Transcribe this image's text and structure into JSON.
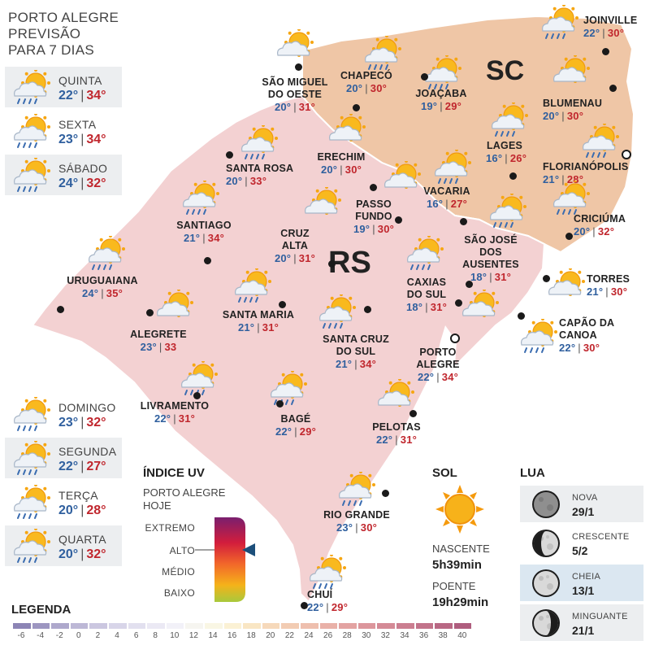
{
  "title": [
    "PORTO ALEGRE",
    "PREVISÃO",
    "PARA 7 DIAS"
  ],
  "forecast": [
    {
      "day": "QUINTA",
      "min": "22°",
      "max": "34°"
    },
    {
      "day": "SEXTA",
      "min": "23°",
      "max": "34°"
    },
    {
      "day": "SÁBADO",
      "min": "24°",
      "max": "32°"
    },
    {
      "day": "DOMINGO",
      "min": "23°",
      "max": "32°"
    },
    {
      "day": "SEGUNDA",
      "min": "22°",
      "max": "27°"
    },
    {
      "day": "TERÇA",
      "min": "20°",
      "max": "28°"
    },
    {
      "day": "QUARTA",
      "min": "20°",
      "max": "32°"
    }
  ],
  "states": {
    "sc": "SC",
    "rs": "RS"
  },
  "cities": [
    {
      "name": [
        "JOINVILLE"
      ],
      "min": "22°",
      "max": "30°"
    },
    {
      "name": [
        "SÃO MIGUEL",
        "DO OESTE"
      ],
      "min": "20°",
      "max": "31°"
    },
    {
      "name": [
        "CHAPECÓ"
      ],
      "min": "20°",
      "max": "30°"
    },
    {
      "name": [
        "JOAÇABA"
      ],
      "min": "19°",
      "max": "29°"
    },
    {
      "name": [
        "BLUMENAU"
      ],
      "min": "20°",
      "max": "30°"
    },
    {
      "name": [
        "LAGES"
      ],
      "min": "16°",
      "max": "26°"
    },
    {
      "name": [
        "FLORIANÓPOLIS"
      ],
      "min": "21°",
      "max": "28°"
    },
    {
      "name": [
        "ERECHIM"
      ],
      "min": "20°",
      "max": "30°"
    },
    {
      "name": [
        "SANTA ROSA"
      ],
      "min": "20°",
      "max": "33°"
    },
    {
      "name": [
        "VACARIA"
      ],
      "min": "16°",
      "max": "27°"
    },
    {
      "name": [
        "PASSO",
        "FUNDO"
      ],
      "min": "19°",
      "max": "30°"
    },
    {
      "name": [
        "CRICIÚMA"
      ],
      "min": "20°",
      "max": "32°"
    },
    {
      "name": [
        "SANTIAGO"
      ],
      "min": "21°",
      "max": "34°"
    },
    {
      "name": [
        "CRUZ ALTA"
      ],
      "min": "20°",
      "max": "31°"
    },
    {
      "name": [
        "SÃO JOSÉ",
        "DOS AUSENTES"
      ],
      "min": "18°",
      "max": "31°"
    },
    {
      "name": [
        "URUGUAIANA"
      ],
      "min": "24°",
      "max": "35°"
    },
    {
      "name": [
        "TORRES"
      ],
      "min": "21°",
      "max": "30°"
    },
    {
      "name": [
        "CAXIAS",
        "DO SUL"
      ],
      "min": "18°",
      "max": "31°"
    },
    {
      "name": [
        "SANTA MARIA"
      ],
      "min": "21°",
      "max": "31°"
    },
    {
      "name": [
        "ALEGRETE"
      ],
      "min": "23°",
      "max": "33"
    },
    {
      "name": [
        "CAPÃO DA",
        "CANOA"
      ],
      "min": "22°",
      "max": "30°"
    },
    {
      "name": [
        "SANTA CRUZ",
        "DO SUL"
      ],
      "min": "21°",
      "max": "34°"
    },
    {
      "name": [
        "PORTO",
        "ALEGRE"
      ],
      "min": "22°",
      "max": "34°"
    },
    {
      "name": [
        "LIVRAMENTO"
      ],
      "min": "22°",
      "max": "31°"
    },
    {
      "name": [
        "BAGÉ"
      ],
      "min": "22°",
      "max": "29°"
    },
    {
      "name": [
        "PELOTAS"
      ],
      "min": "22°",
      "max": "31°"
    },
    {
      "name": [
        "RIO GRANDE"
      ],
      "min": "23°",
      "max": "30°"
    },
    {
      "name": [
        "CHUÍ"
      ],
      "min": "22°",
      "max": "29°"
    }
  ],
  "uv": {
    "heading": "ÍNDICE UV",
    "sub": [
      "PORTO ALEGRE",
      "HOJE"
    ],
    "levels": [
      "EXTREMO",
      "ALTO",
      "MÉDIO",
      "BAIXO"
    ],
    "current": "ALTO",
    "gradient": [
      "#7a1f6e",
      "#d21d3c",
      "#f2672a",
      "#f5b21a",
      "#a8c93c"
    ]
  },
  "sun": {
    "heading": "SOL",
    "rise_label": "NASCENTE",
    "rise": "5h39min",
    "set_label": "POENTE",
    "set": "19h29min"
  },
  "moon": {
    "heading": "LUA",
    "phases": [
      {
        "name": "NOVA",
        "date": "29/1"
      },
      {
        "name": "CRESCENTE",
        "date": "5/2"
      },
      {
        "name": "CHEIA",
        "date": "13/1"
      },
      {
        "name": "MINGUANTE",
        "date": "21/1"
      }
    ]
  },
  "legend": {
    "heading": "LEGENDA",
    "ticks": [
      "-6",
      "-4",
      "-2",
      "0",
      "2",
      "4",
      "6",
      "8",
      "10",
      "12",
      "14",
      "16",
      "18",
      "20",
      "22",
      "24",
      "26",
      "28",
      "30",
      "32",
      "34",
      "36",
      "38",
      "40"
    ],
    "colors": [
      "#8c84b5",
      "#9d96c1",
      "#aea8cc",
      "#bdb8d6",
      "#cbc7e0",
      "#d8d5e9",
      "#e2e0ef",
      "#ebe9f4",
      "#f2f1f8",
      "#f6f5f0",
      "#f9f6e4",
      "#fbf1d4",
      "#f9e6c4",
      "#f6d9bb",
      "#f2ccb3",
      "#eebfae",
      "#e9b1a8",
      "#e3a3a2",
      "#dc969c",
      "#d48a96",
      "#cb7e90",
      "#c2738a",
      "#b96884",
      "#af5d7e"
    ]
  },
  "colors": {
    "low": "#2f5f9e",
    "high": "#c0262d",
    "rs_fill": "#f3d3d3",
    "sc_fill": "#f0c9a6"
  }
}
